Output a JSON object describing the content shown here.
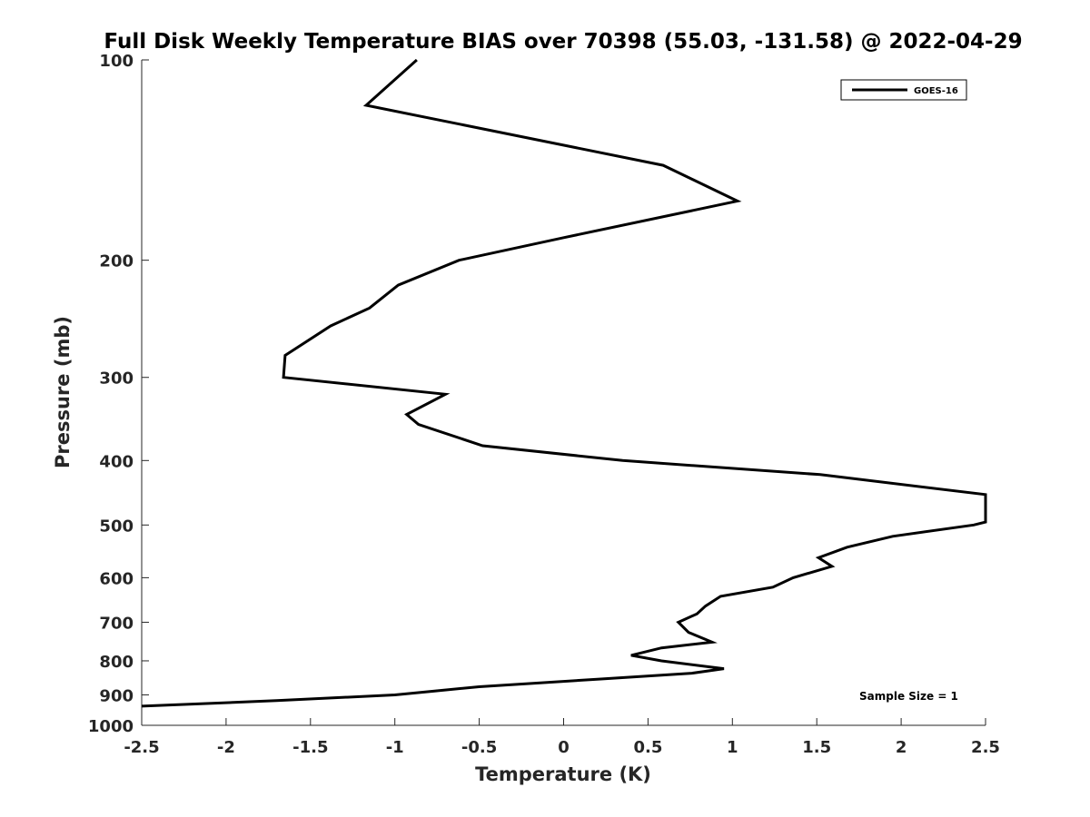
{
  "chart_data": {
    "type": "line",
    "title": "Full Disk Weekly Temperature BIAS over 70398 (55.03, -131.58) @ 2022-04-29",
    "xlabel": "Temperature (K)",
    "ylabel": "Pressure (mb)",
    "xlim": [
      -2.5,
      2.5
    ],
    "ylim": [
      100,
      1000
    ],
    "yscale": "log",
    "yreversed": true,
    "grid": false,
    "legend_position": "top-right",
    "x_ticks": [
      -2.5,
      -2,
      -1.5,
      -1,
      -0.5,
      0,
      0.5,
      1,
      1.5,
      2,
      2.5
    ],
    "x_tick_labels": [
      "-2.5",
      "-2",
      "-1.5",
      "-1",
      "-0.5",
      "0",
      "0.5",
      "1",
      "1.5",
      "2",
      "2.5"
    ],
    "y_ticks": [
      100,
      200,
      300,
      400,
      500,
      600,
      700,
      800,
      900,
      1000
    ],
    "y_tick_labels": [
      "100",
      "200",
      "300",
      "400",
      "500",
      "600",
      "700",
      "800",
      "900",
      "1000"
    ],
    "series": [
      {
        "name": "GOES-16",
        "color": "#000000",
        "points": [
          {
            "x": -0.87,
            "y": 100
          },
          {
            "x": -1.17,
            "y": 117
          },
          {
            "x": 0.59,
            "y": 144
          },
          {
            "x": 1.03,
            "y": 163
          },
          {
            "x": 0.0,
            "y": 185
          },
          {
            "x": -0.62,
            "y": 200
          },
          {
            "x": -0.98,
            "y": 218
          },
          {
            "x": -1.15,
            "y": 236
          },
          {
            "x": -1.38,
            "y": 251
          },
          {
            "x": -1.65,
            "y": 278
          },
          {
            "x": -1.66,
            "y": 300
          },
          {
            "x": -0.7,
            "y": 318
          },
          {
            "x": -0.93,
            "y": 341
          },
          {
            "x": -0.86,
            "y": 353
          },
          {
            "x": -0.48,
            "y": 380
          },
          {
            "x": 0.35,
            "y": 400
          },
          {
            "x": 1.52,
            "y": 420
          },
          {
            "x": 2.5,
            "y": 450
          },
          {
            "x": 2.5,
            "y": 495
          },
          {
            "x": 2.43,
            "y": 500
          },
          {
            "x": 1.95,
            "y": 520
          },
          {
            "x": 1.68,
            "y": 540
          },
          {
            "x": 1.51,
            "y": 560
          },
          {
            "x": 1.59,
            "y": 577
          },
          {
            "x": 1.36,
            "y": 600
          },
          {
            "x": 1.24,
            "y": 620
          },
          {
            "x": 0.93,
            "y": 640
          },
          {
            "x": 0.84,
            "y": 662
          },
          {
            "x": 0.79,
            "y": 680
          },
          {
            "x": 0.68,
            "y": 700
          },
          {
            "x": 0.74,
            "y": 725
          },
          {
            "x": 0.88,
            "y": 750
          },
          {
            "x": 0.58,
            "y": 765
          },
          {
            "x": 0.4,
            "y": 785
          },
          {
            "x": 0.58,
            "y": 800
          },
          {
            "x": 0.95,
            "y": 822
          },
          {
            "x": 0.76,
            "y": 835
          },
          {
            "x": 0.22,
            "y": 852
          },
          {
            "x": -0.5,
            "y": 875
          },
          {
            "x": -1.0,
            "y": 900
          },
          {
            "x": -1.7,
            "y": 918
          },
          {
            "x": -2.5,
            "y": 936
          }
        ]
      }
    ],
    "annotations": [
      {
        "text": "Sample Size = 1",
        "position": "bottom-right"
      }
    ]
  }
}
